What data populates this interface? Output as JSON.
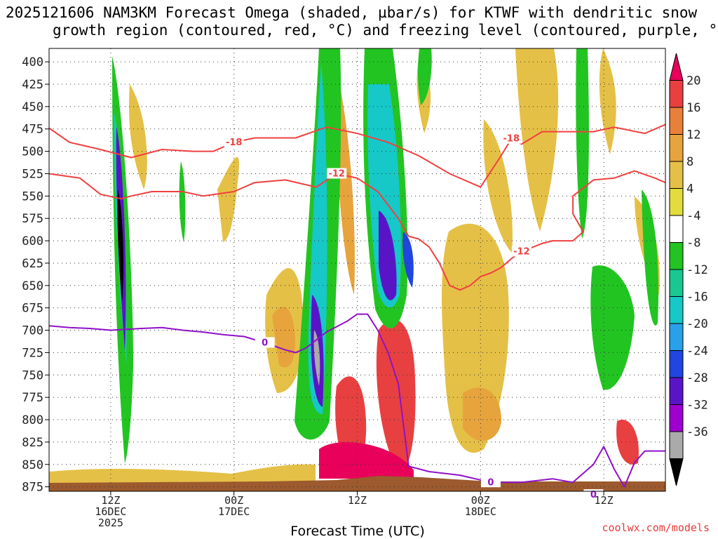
{
  "chart_data": {
    "type": "time-height contour",
    "title_line1": "2025121606 NAM3KM Forecast Omega (shaded, µbar/s) for KTWF with dendritic snow",
    "title_line2": "growth region (contoured, red, °C) and freezing level (contoured, purple, °C)",
    "xlabel": "Forecast Time (UTC)",
    "credit": "coolwx.com/models",
    "y_levels": [
      400,
      425,
      450,
      475,
      500,
      525,
      550,
      575,
      600,
      625,
      650,
      675,
      700,
      725,
      750,
      775,
      800,
      825,
      850,
      875
    ],
    "y_range_hpa": [
      385,
      880
    ],
    "x_range_hours": [
      6,
      66
    ],
    "x_ticks": [
      {
        "hour": 12,
        "lines": [
          "12Z",
          "16DEC",
          "2025"
        ]
      },
      {
        "hour": 24,
        "lines": [
          "00Z",
          "17DEC"
        ]
      },
      {
        "hour": 36,
        "lines": [
          "12Z"
        ]
      },
      {
        "hour": 48,
        "lines": [
          "00Z",
          "18DEC"
        ]
      },
      {
        "hour": 60,
        "lines": [
          "12Z"
        ]
      }
    ],
    "colorbar": {
      "labels": [
        20,
        16,
        12,
        8,
        4,
        -4,
        -8,
        -12,
        -16,
        -20,
        -24,
        -28,
        -32,
        -36
      ],
      "colors": [
        "#e8005a",
        "#e84040",
        "#e9803a",
        "#e7a43c",
        "#e5c046",
        "#e2dc3c",
        "#ffffff",
        "#22c422",
        "#18c890",
        "#16c8c8",
        "#2aa0ea",
        "#2045e0",
        "#5a14c8",
        "#9e00d0",
        "#aaaaaa",
        "#000000"
      ]
    },
    "contours": [
      {
        "name": "-18 C",
        "color": "#f04040",
        "label": "-18",
        "points": [
          [
            6,
            474
          ],
          [
            8,
            490
          ],
          [
            11,
            498
          ],
          [
            14,
            507
          ],
          [
            17,
            498
          ],
          [
            20,
            500
          ],
          [
            22,
            500
          ],
          [
            24,
            490
          ],
          [
            26,
            485
          ],
          [
            30,
            485
          ],
          [
            33,
            473
          ],
          [
            36,
            480
          ],
          [
            39,
            490
          ],
          [
            42,
            505
          ],
          [
            45,
            525
          ],
          [
            48,
            540
          ],
          [
            50,
            505
          ],
          [
            51,
            486
          ],
          [
            52,
            492
          ],
          [
            54,
            478
          ],
          [
            57,
            478
          ],
          [
            59,
            478
          ],
          [
            61,
            473
          ],
          [
            64,
            480
          ],
          [
            66,
            470
          ]
        ]
      },
      {
        "name": "-12 C",
        "color": "#f04040",
        "label": "-12",
        "points": [
          [
            6,
            525
          ],
          [
            9,
            530
          ],
          [
            11,
            548
          ],
          [
            13,
            553
          ],
          [
            14,
            550
          ],
          [
            16,
            545
          ],
          [
            19,
            545
          ],
          [
            21,
            550
          ],
          [
            24,
            545
          ],
          [
            26,
            535
          ],
          [
            29,
            532
          ],
          [
            32,
            540
          ],
          [
            34,
            525
          ],
          [
            36,
            530
          ],
          [
            38,
            545
          ],
          [
            39,
            560
          ],
          [
            40,
            575
          ],
          [
            41,
            595
          ],
          [
            42,
            598
          ],
          [
            43,
            607
          ],
          [
            44,
            625
          ],
          [
            45,
            650
          ],
          [
            46,
            655
          ],
          [
            47,
            650
          ],
          [
            48,
            640
          ],
          [
            49,
            636
          ],
          [
            50,
            630
          ],
          [
            51,
            620
          ],
          [
            52,
            612
          ],
          [
            54,
            603
          ],
          [
            55,
            600
          ],
          [
            57,
            600
          ],
          [
            58,
            590
          ],
          [
            57,
            570
          ],
          [
            57,
            550
          ],
          [
            59,
            532
          ],
          [
            61,
            530
          ],
          [
            63,
            522
          ],
          [
            65,
            530
          ],
          [
            66,
            535
          ]
        ]
      },
      {
        "name": "0 C",
        "color": "#9010c8",
        "label": "0",
        "points": [
          [
            6,
            695
          ],
          [
            8,
            697
          ],
          [
            10,
            698
          ],
          [
            12,
            700
          ],
          [
            15,
            698
          ],
          [
            17,
            697
          ],
          [
            19,
            700
          ],
          [
            21,
            702
          ],
          [
            23,
            705
          ],
          [
            25,
            707
          ],
          [
            27,
            714
          ],
          [
            29,
            722
          ],
          [
            30,
            725
          ],
          [
            31,
            720
          ],
          [
            33,
            702
          ],
          [
            35,
            690
          ],
          [
            36,
            682
          ],
          [
            37,
            682
          ],
          [
            38,
            700
          ],
          [
            39,
            725
          ],
          [
            40,
            760
          ],
          [
            41,
            852
          ],
          [
            43,
            858
          ],
          [
            46,
            862
          ],
          [
            49,
            870
          ],
          [
            52,
            870
          ],
          [
            55,
            866
          ],
          [
            57,
            870
          ],
          [
            59,
            850
          ],
          [
            60,
            830
          ],
          [
            61,
            855
          ],
          [
            62,
            875
          ],
          [
            63,
            848
          ],
          [
            64,
            835
          ],
          [
            66,
            835
          ]
        ]
      },
      {
        "name": "0 C lower",
        "color": "#9010c8",
        "label": "0",
        "points": [
          [
            49,
            884
          ],
          [
            55,
            884
          ],
          [
            59,
            884
          ],
          [
            60,
            884
          ]
        ]
      }
    ]
  }
}
